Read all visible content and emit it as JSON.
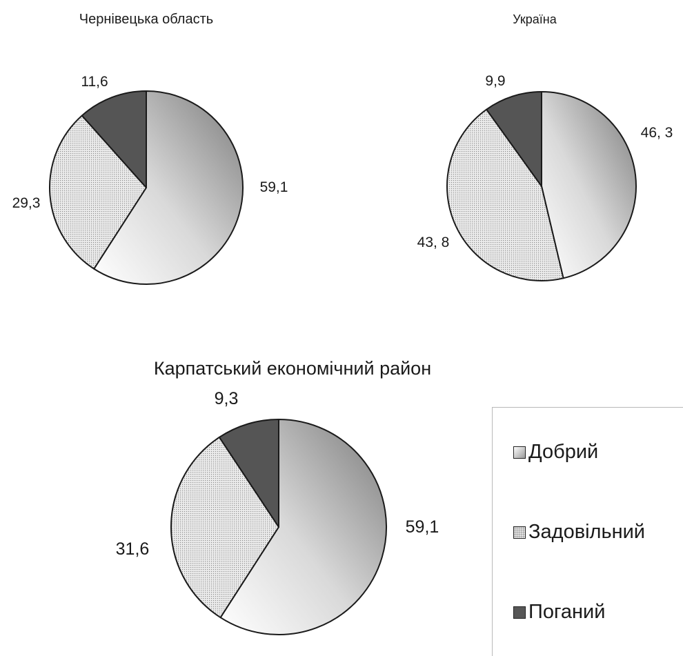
{
  "chart_data": [
    {
      "type": "pie",
      "title": "Чернівецька область",
      "categories": [
        "Добрий",
        "Задовільний",
        "Поганий"
      ],
      "values": [
        59.1,
        29.3,
        11.6
      ],
      "value_labels": [
        "59,1",
        "29,3",
        "11,6"
      ]
    },
    {
      "type": "pie",
      "title": "Україна",
      "categories": [
        "Добрий",
        "Задовільний",
        "Поганий"
      ],
      "values": [
        46.3,
        43.8,
        9.9
      ],
      "value_labels": [
        "46, 3",
        "43, 8",
        "9,9"
      ]
    },
    {
      "type": "pie",
      "title": "Карпатський економічний район",
      "categories": [
        "Добрий",
        "Задовільний",
        "Поганий"
      ],
      "values": [
        59.1,
        31.6,
        9.3
      ],
      "value_labels": [
        "59,1",
        "31,6",
        "9,3"
      ]
    }
  ],
  "legend": {
    "items": [
      {
        "label": "Добрий",
        "key": "good"
      },
      {
        "label": "Задовільний",
        "key": "fair"
      },
      {
        "label": "Поганий",
        "key": "bad"
      }
    ]
  },
  "colors": {
    "good_light": "#ffffff",
    "good_dark": "#8c8c8c",
    "fair": "#e6e6e6",
    "fair_dots": "#8d8d8d",
    "bad": "#555555",
    "outline": "#1a1a1a"
  }
}
